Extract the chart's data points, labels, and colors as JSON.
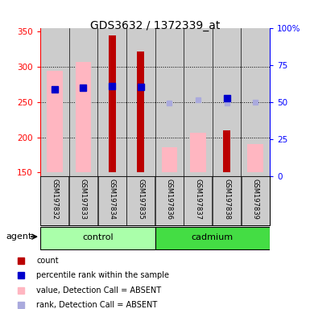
{
  "title": "GDS3632 / 1372339_at",
  "samples": [
    "GSM197832",
    "GSM197833",
    "GSM197834",
    "GSM197835",
    "GSM197836",
    "GSM197837",
    "GSM197838",
    "GSM197839"
  ],
  "ylim_left": [
    145,
    355
  ],
  "ylim_right": [
    0,
    100
  ],
  "yticks_left": [
    150,
    200,
    250,
    300,
    350
  ],
  "yticks_right": [
    0,
    25,
    50,
    75,
    100
  ],
  "count_values": [
    null,
    null,
    344,
    322,
    null,
    null,
    210,
    null
  ],
  "count_color": "#BB0000",
  "rank_values": [
    268,
    270,
    272,
    271,
    null,
    null,
    255,
    null
  ],
  "rank_color": "#0000CC",
  "absent_value": [
    294,
    307,
    null,
    null,
    186,
    206,
    null,
    190
  ],
  "absent_value_color": "#FFB6C1",
  "absent_rank": [
    268,
    270,
    null,
    null,
    248,
    253,
    249,
    250
  ],
  "absent_rank_color": "#AAAADD",
  "baseline": 150,
  "control_color": "#AAFFAA",
  "cadmium_color": "#44DD44",
  "legend_items": [
    {
      "color": "#BB0000",
      "label": "count"
    },
    {
      "color": "#0000CC",
      "label": "percentile rank within the sample"
    },
    {
      "color": "#FFB6C1",
      "label": "value, Detection Call = ABSENT"
    },
    {
      "color": "#AAAADD",
      "label": "rank, Detection Call = ABSENT"
    }
  ]
}
